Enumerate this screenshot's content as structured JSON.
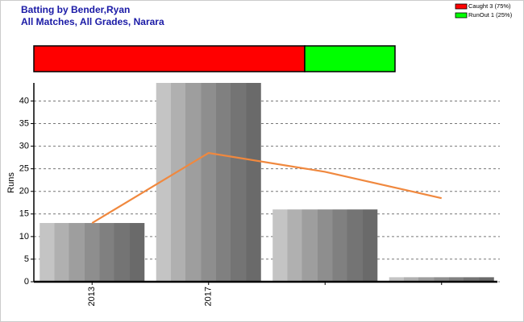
{
  "chart_data": [
    {
      "type": "stacked-hbar",
      "series": [
        {
          "name": "Caught 3 (75%)",
          "color": "#ff0000",
          "values": [
            75
          ]
        },
        {
          "name": "RunOut 1 (25%)",
          "color": "#00ff00",
          "values": [
            25
          ]
        }
      ],
      "xlim": [
        0,
        100
      ]
    },
    {
      "type": "bar",
      "title": "Batting by Bender,Ryan",
      "subtitle": "All Matches, All Grades, Narara",
      "y_label": "Runs",
      "categories": [
        "2013",
        "2017",
        null,
        null
      ],
      "series": [
        {
          "type": "bar",
          "values": [
            13,
            44,
            16,
            1
          ]
        },
        {
          "type": "line",
          "color": "#f0883e",
          "values": [
            13,
            28.5,
            24.33,
            18.5
          ]
        }
      ],
      "ylim": [
        0,
        44
      ],
      "yticks": [
        0,
        5,
        10,
        15,
        20,
        25,
        30,
        35,
        40
      ],
      "grid": true
    }
  ]
}
